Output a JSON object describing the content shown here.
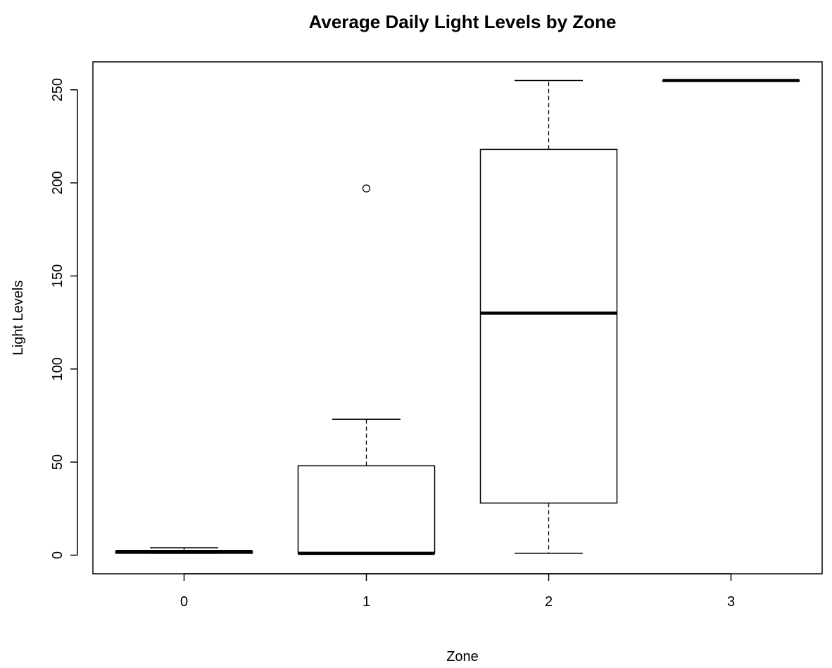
{
  "chart_data": {
    "type": "boxplot",
    "title": "Average Daily Light Levels by Zone",
    "xlabel": "Zone",
    "ylabel": "Light Levels",
    "categories": [
      "0",
      "1",
      "2",
      "3"
    ],
    "yticks": [
      0,
      50,
      100,
      150,
      200,
      250
    ],
    "ylim": [
      -10,
      265
    ],
    "boxes": [
      {
        "name": "0",
        "whisker_low": 1,
        "q1": 1,
        "median": 2,
        "q3": 2,
        "whisker_high": 4,
        "outliers": []
      },
      {
        "name": "1",
        "whisker_low": 1,
        "q1": 1,
        "median": 1,
        "q3": 48,
        "whisker_high": 73,
        "outliers": [
          197
        ]
      },
      {
        "name": "2",
        "whisker_low": 1,
        "q1": 28,
        "median": 130,
        "q3": 218,
        "whisker_high": 255,
        "outliers": []
      },
      {
        "name": "3",
        "whisker_low": 255,
        "q1": 255,
        "median": 255,
        "q3": 255,
        "whisker_high": 255,
        "outliers": []
      }
    ],
    "grid": false,
    "legend": "none"
  }
}
